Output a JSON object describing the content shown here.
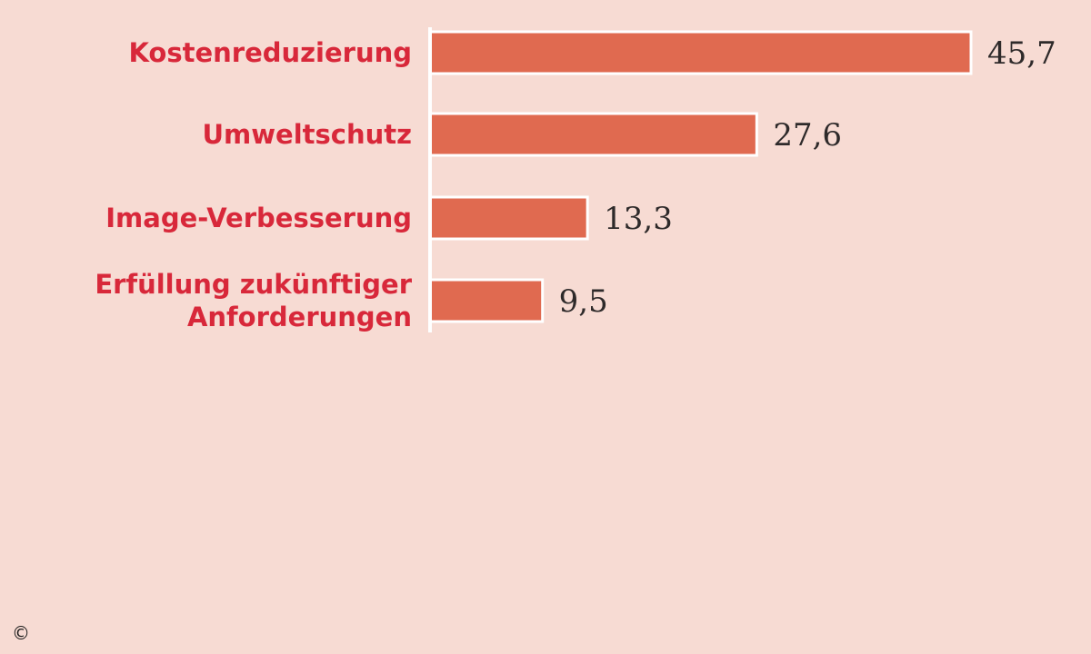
{
  "colors": {
    "background": "#f7dbd3",
    "bar": "#e06a50",
    "bar_outline": "#ffffff",
    "axis": "#ffffff",
    "category_text": "#d8283a",
    "value_text": "#2e2a2a"
  },
  "copyright_symbol": "©",
  "chart_data": {
    "type": "bar",
    "orientation": "horizontal",
    "categories": [
      [
        "Kostenreduzierung"
      ],
      [
        "Umweltschutz"
      ],
      [
        "Image-Verbesserung"
      ],
      [
        "Erfüllung zukünftiger",
        "Anforderungen"
      ]
    ],
    "values": [
      45.7,
      27.6,
      13.3,
      9.5
    ],
    "value_labels": [
      "45,7",
      "27,6",
      "13,3",
      "9,5"
    ],
    "title": "",
    "xlabel": "",
    "ylabel": "",
    "grid": false,
    "legend": "none"
  }
}
